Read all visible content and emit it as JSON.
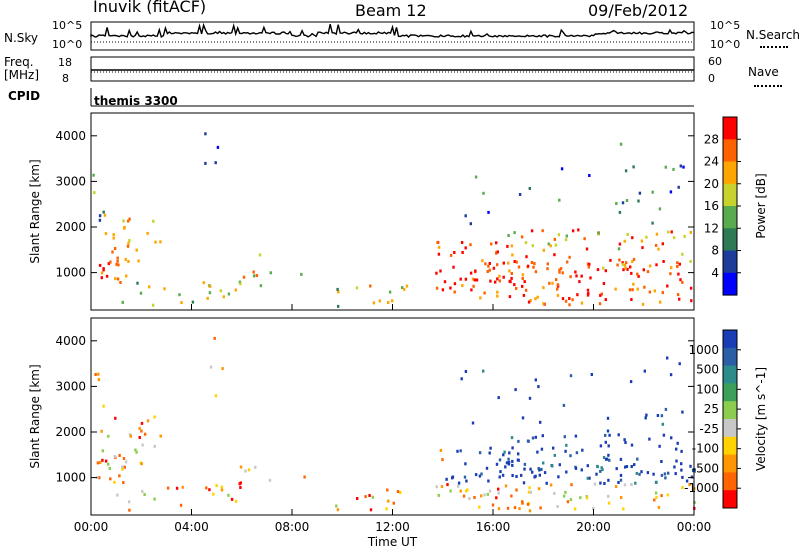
{
  "header": {
    "station": "Inuvik (fitACF)",
    "beam": "Beam 12",
    "date": "09/Feb/2012"
  },
  "top_panels": {
    "nsky_label": "N.Sky",
    "nsky_ticks": [
      "10^5",
      "10^0"
    ],
    "nsearch_label": "N.Search",
    "nsearch_ticks": [
      "10^5",
      "10^0"
    ],
    "freq_label": "Freq.",
    "freq_unit": "[MHz]",
    "freq_ticks": [
      "18",
      "8"
    ],
    "nave_label": "Nave",
    "nave_ticks": [
      "60",
      "0"
    ],
    "cpid_label": "CPID",
    "cpid_value": "themis 3300"
  },
  "chart_data": [
    {
      "type": "heatmap",
      "name": "power",
      "ylabel": "Slant Range [km]",
      "yticks": [
        "4000",
        "3000",
        "2000",
        "1000"
      ],
      "ylim": [
        180,
        4500
      ],
      "xlabel": "",
      "xticks": [
        "00:00",
        "04:00",
        "08:00",
        "12:00",
        "16:00",
        "20:00",
        "00:00"
      ],
      "xlim_hours": [
        0,
        24
      ],
      "colorbar_label": "Power [dB]",
      "colorbar_ticks": [
        "28",
        "24",
        "20",
        "16",
        "12",
        "8",
        "4"
      ],
      "colorbar_colors": [
        "#ff0000",
        "#ff6000",
        "#ffa500",
        "#c8d22c",
        "#5aaa50",
        "#2d7a55",
        "#1e3c9a",
        "#0000ff"
      ]
    },
    {
      "type": "heatmap",
      "name": "velocity",
      "ylabel": "Slant Range [km]",
      "yticks": [
        "4000",
        "3000",
        "2000",
        "1000"
      ],
      "ylim": [
        180,
        4500
      ],
      "xlabel": "Time UT",
      "xticks": [
        "00:00",
        "04:00",
        "08:00",
        "12:00",
        "16:00",
        "20:00",
        "00:00"
      ],
      "xlim_hours": [
        0,
        24
      ],
      "colorbar_label": "Velocity [m s^-1]",
      "colorbar_ticks": [
        "1000",
        "500",
        "100",
        "25",
        "-25",
        "-100",
        "-500",
        "-1000"
      ],
      "colorbar_colors": [
        "#1a3cb4",
        "#2a5fa8",
        "#2e8b8b",
        "#3ca05a",
        "#8ccd50",
        "#c8c8c8",
        "#ffd200",
        "#ff9600",
        "#ff6400",
        "#ff0000"
      ]
    }
  ]
}
